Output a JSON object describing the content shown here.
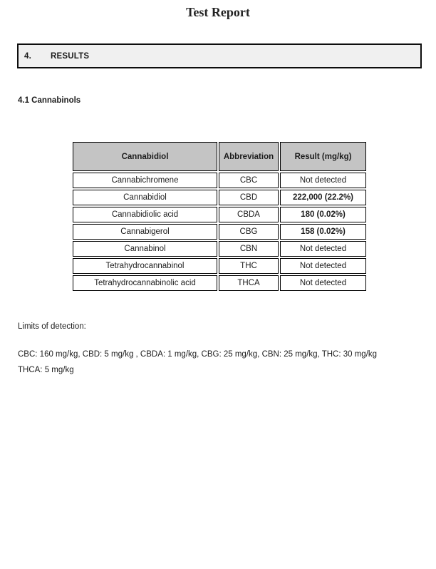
{
  "page": {
    "title": "Test Report"
  },
  "section": {
    "number": "4.",
    "title": "RESULTS"
  },
  "subsection": {
    "title": "4.1 Cannabinols"
  },
  "table": {
    "headers": [
      "Cannabidiol",
      "Abbreviation",
      "Result (mg/kg)"
    ],
    "rows": [
      {
        "name": "Cannabichromene",
        "abbr": "CBC",
        "result": "Not detected",
        "bold": false
      },
      {
        "name": "Cannabidiol",
        "abbr": "CBD",
        "result": "222,000 (22.2%)",
        "bold": true
      },
      {
        "name": "Cannabidiolic acid",
        "abbr": "CBDA",
        "result": "180 (0.02%)",
        "bold": true
      },
      {
        "name": "Cannabigerol",
        "abbr": "CBG",
        "result": "158 (0.02%)",
        "bold": true
      },
      {
        "name": "Cannabinol",
        "abbr": "CBN",
        "result": "Not detected",
        "bold": false
      },
      {
        "name": "Tetrahydrocannabinol",
        "abbr": "THC",
        "result": "Not detected",
        "bold": false
      },
      {
        "name": "Tetrahydrocannabinolic acid",
        "abbr": "THCA",
        "result": "Not detected",
        "bold": false
      }
    ]
  },
  "limits": {
    "label": "Limits of detection:",
    "lines": [
      "CBC: 160 mg/kg, CBD: 5 mg/kg , CBDA: 1 mg/kg, CBG: 25 mg/kg, CBN: 25 mg/kg, THC: 30 mg/kg",
      "THCA: 5 mg/kg"
    ]
  },
  "colors": {
    "table_header_bg": "#c4c4c4",
    "section_box_bg": "#f0f0f0",
    "border": "#000000"
  }
}
